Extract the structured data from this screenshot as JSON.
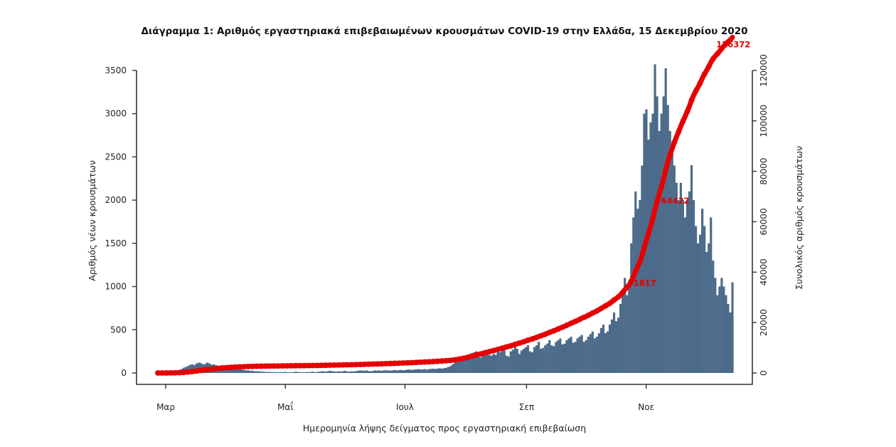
{
  "chart_data": {
    "type": "bar",
    "title": "Διάγραμμα 1: Αριθμός εργαστηριακά επιβεβαιωμένων κρουσμάτων COVID-19 στην Ελλάδα, 15 Δεκεμβρίου 2020",
    "xlabel": "Ημερομηνία λήψης δείγματος προς εργαστηριακή επιβεβαίωση",
    "ylabel": "Αριθμός νέων κρουσμάτων",
    "y2label": "Συνολικός αριθμός κρουσμάτων",
    "x_ticks": [
      "Μαρ",
      "Μαΐ",
      "Ιουλ",
      "Σεπ",
      "Νοε"
    ],
    "y_ticks": [
      "0",
      "500",
      "1000",
      "1500",
      "2000",
      "2500",
      "3000",
      "3500"
    ],
    "y2_ticks": [
      "0",
      "20000",
      "40000",
      "60000",
      "80000",
      "100000",
      "120000"
    ],
    "ylim": [
      0,
      3500
    ],
    "y2lim": [
      0,
      120000
    ],
    "x_range": [
      "2020-02-26",
      "2020-12-15"
    ],
    "grid": false,
    "annotations": [
      {
        "label": "126372",
        "value": 126372,
        "date": "2020-12-14"
      },
      {
        "label": "64422",
        "value": 64422,
        "date": "2020-11-18"
      },
      {
        "label": "31817",
        "value": 31817,
        "date": "2020-11-01"
      }
    ],
    "series": [
      {
        "name": "Αριθμός νέων κρουσμάτων",
        "kind": "bar",
        "color": "#4c6b8a",
        "start_date": "2020-02-26",
        "values": [
          1,
          2,
          2,
          4,
          6,
          7,
          10,
          15,
          20,
          25,
          35,
          45,
          60,
          70,
          80,
          95,
          100,
          90,
          110,
          120,
          115,
          100,
          105,
          120,
          110,
          95,
          100,
          90,
          80,
          85,
          90,
          70,
          70,
          60,
          65,
          55,
          50,
          45,
          40,
          40,
          35,
          30,
          30,
          25,
          25,
          20,
          20,
          18,
          15,
          15,
          12,
          12,
          12,
          10,
          10,
          10,
          8,
          10,
          10,
          12,
          10,
          8,
          9,
          10,
          15,
          12,
          10,
          8,
          9,
          10,
          10,
          12,
          15,
          10,
          12,
          15,
          18,
          20,
          15,
          20,
          25,
          20,
          18,
          15,
          20,
          18,
          20,
          25,
          18,
          15,
          20,
          18,
          22,
          25,
          30,
          28,
          25,
          30,
          22,
          20,
          25,
          30,
          28,
          30,
          25,
          30,
          32,
          30,
          28,
          30,
          35,
          30,
          32,
          35,
          30,
          35,
          38,
          40,
          35,
          40,
          42,
          45,
          40,
          42,
          45,
          40,
          45,
          48,
          50,
          48,
          50,
          55,
          50,
          55,
          60,
          70,
          80,
          100,
          120,
          130,
          140,
          150,
          180,
          200,
          190,
          220,
          230,
          240,
          250,
          200,
          180,
          250,
          260,
          220,
          210,
          200,
          220,
          210,
          250,
          240,
          260,
          280,
          200,
          190,
          250,
          270,
          300,
          280,
          220,
          260,
          280,
          300,
          320,
          250,
          240,
          300,
          320,
          360,
          280,
          290,
          320,
          340,
          380,
          320,
          310,
          360,
          380,
          400,
          330,
          340,
          380,
          400,
          420,
          350,
          360,
          400,
          420,
          440,
          360,
          380,
          420,
          450,
          480,
          400,
          420,
          460,
          520,
          560,
          460,
          480,
          560,
          620,
          700,
          600,
          640,
          800,
          950,
          1100,
          900,
          1000,
          1500,
          1800,
          2100,
          1900,
          2000,
          2400,
          3000,
          3050,
          2700,
          2900,
          3000,
          3571,
          3200,
          2800,
          3000,
          3200,
          3525,
          3100,
          2800,
          2600,
          2400,
          2200,
          2000,
          2200,
          2000,
          1800,
          2000,
          2100,
          2405,
          2000,
          1700,
          1500,
          1600,
          1900,
          1700,
          1400,
          1500,
          1800,
          1300,
          1100,
          900,
          1000,
          1100,
          1000,
          900,
          800,
          700,
          1050
        ]
      },
      {
        "name": "Συνολικός αριθμός κρουσμάτων",
        "kind": "line",
        "color": "#e60000",
        "cumulative_of": "Αριθμός νέων κρουσμάτων"
      }
    ]
  }
}
